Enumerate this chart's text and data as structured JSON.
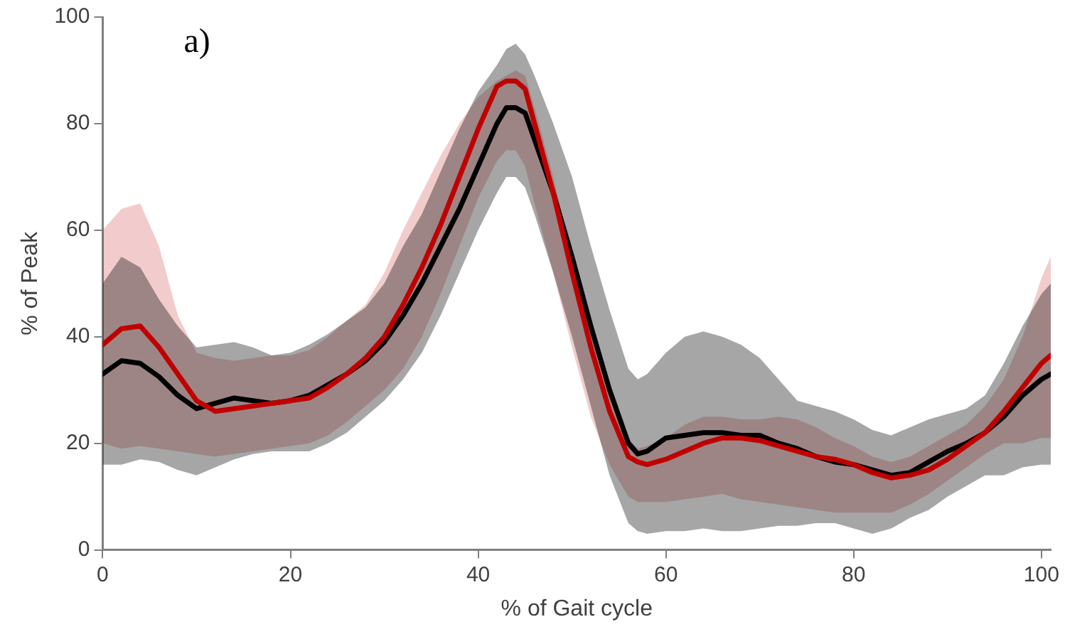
{
  "chart_data": {
    "type": "line",
    "xlabel": "% of Gait cycle",
    "ylabel": "% of Peak",
    "annotations": [
      "a)"
    ],
    "x": [
      0,
      2,
      4,
      6,
      8,
      10,
      12,
      14,
      16,
      18,
      20,
      22,
      24,
      26,
      28,
      30,
      32,
      34,
      36,
      38,
      40,
      42,
      43,
      44,
      45,
      46,
      48,
      50,
      52,
      54,
      56,
      57,
      58,
      60,
      62,
      64,
      66,
      68,
      70,
      72,
      74,
      76,
      78,
      80,
      82,
      84,
      86,
      88,
      90,
      92,
      94,
      96,
      98,
      100,
      101
    ],
    "xlim": [
      0,
      101
    ],
    "xticks": [
      0,
      20,
      40,
      60,
      80,
      100
    ],
    "ylim": [
      0,
      100
    ],
    "yticks": [
      0,
      20,
      40,
      60,
      80,
      100
    ],
    "grid": false,
    "legend": false,
    "marker": "none",
    "line_style": "solid",
    "series": [
      {
        "color": "#000000",
        "values": [
          33,
          35.5,
          35,
          32.5,
          29,
          26.5,
          27.5,
          28.5,
          28,
          27.5,
          28,
          29,
          31,
          33,
          35.5,
          39,
          44,
          50,
          57,
          64,
          72,
          80,
          83,
          83,
          82,
          77,
          67,
          55,
          42,
          30,
          20,
          18,
          18.5,
          21,
          21.5,
          22,
          22,
          21.5,
          21.5,
          20,
          19,
          17.5,
          16.5,
          16,
          15,
          14,
          14.5,
          16.5,
          18.5,
          20,
          22,
          25,
          29,
          32,
          33
        ],
        "lower": [
          16,
          16,
          17,
          16.5,
          15,
          14,
          15.5,
          17,
          18,
          18.5,
          18.5,
          18.5,
          20,
          22,
          25,
          28,
          32,
          37,
          44,
          52,
          60,
          67,
          70,
          70,
          68,
          63,
          52,
          40,
          27,
          14,
          5,
          3.5,
          3,
          3.5,
          3.5,
          4,
          3.5,
          3.5,
          4,
          4.5,
          4.5,
          5,
          5,
          4,
          3,
          4,
          6,
          7.5,
          10,
          12,
          14,
          14,
          15.5,
          16,
          16
        ],
        "upper": [
          50,
          55,
          53,
          47,
          42,
          38,
          38.5,
          39,
          38,
          36.5,
          37,
          38.5,
          40.5,
          43,
          45.5,
          50,
          57,
          63,
          71,
          79,
          86,
          91,
          94,
          95,
          93,
          89,
          80,
          70,
          57,
          45,
          34,
          32,
          33,
          37,
          40,
          41,
          40,
          38.5,
          36,
          32,
          28,
          27,
          26,
          24.5,
          22.5,
          21.5,
          23,
          24.5,
          25.5,
          26.5,
          29,
          35,
          42,
          48,
          50
        ]
      },
      {
        "color": "#c00000",
        "values": [
          38.5,
          41.5,
          42,
          38,
          33,
          28,
          26,
          26.5,
          27,
          27.5,
          28,
          28.5,
          30.5,
          33,
          36,
          40,
          46,
          53,
          61,
          70,
          79,
          87,
          88,
          88,
          86.5,
          80,
          67,
          52,
          38,
          26,
          17.5,
          16.5,
          16,
          17,
          18.5,
          20,
          21,
          21,
          20.5,
          19.5,
          18.5,
          17.5,
          17,
          16,
          14.5,
          13.5,
          14,
          15,
          17,
          19.5,
          22,
          26,
          30.5,
          35,
          36.5
        ],
        "lower": [
          20,
          19,
          19.5,
          19,
          18.5,
          18,
          17.5,
          18,
          18.5,
          19,
          19.5,
          20,
          21.5,
          24,
          27,
          30,
          34,
          40,
          48,
          57,
          66,
          73,
          75,
          75,
          72,
          65,
          52,
          38,
          25,
          16,
          10,
          9,
          9,
          9,
          9.5,
          10,
          10.5,
          9.5,
          9,
          8.5,
          8,
          7.5,
          7,
          7,
          7,
          7,
          8.5,
          10.5,
          13,
          15.5,
          18,
          20,
          20,
          21,
          21
        ],
        "upper": [
          60,
          64,
          65,
          57,
          44,
          37,
          36,
          35.5,
          36,
          36.5,
          36.5,
          37.5,
          40,
          43,
          46,
          52,
          60,
          67,
          74,
          80,
          85,
          88,
          89,
          90,
          89,
          83,
          70,
          55,
          42,
          29,
          21,
          19,
          19.5,
          21,
          23.5,
          25,
          25,
          24.5,
          24.5,
          25,
          24.5,
          23,
          21,
          19.5,
          17.5,
          16.5,
          17.5,
          19.5,
          21.5,
          23.5,
          27,
          32,
          40,
          51,
          55
        ]
      }
    ]
  }
}
